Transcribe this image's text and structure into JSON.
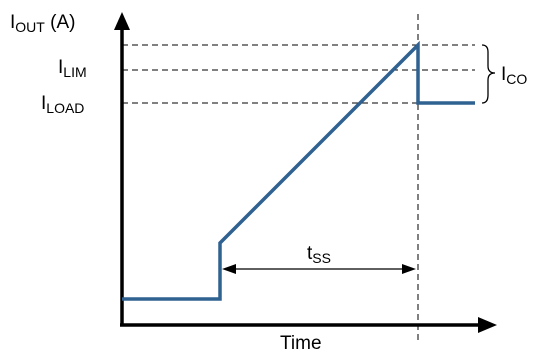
{
  "diagram": {
    "y_axis_title": {
      "main": "I",
      "sub": "OUT",
      "suffix": " (A)"
    },
    "x_axis_title": "Time",
    "levels": {
      "lim": {
        "main": "I",
        "sub": "LIM"
      },
      "load": {
        "main": "I",
        "sub": "LOAD"
      }
    },
    "brace_label": {
      "main": "I",
      "sub": "CO"
    },
    "interval_label": {
      "main": "t",
      "sub": "SS"
    },
    "colors": {
      "trace": "#2f6191",
      "axis": "#000000",
      "guide": "#000000"
    }
  }
}
